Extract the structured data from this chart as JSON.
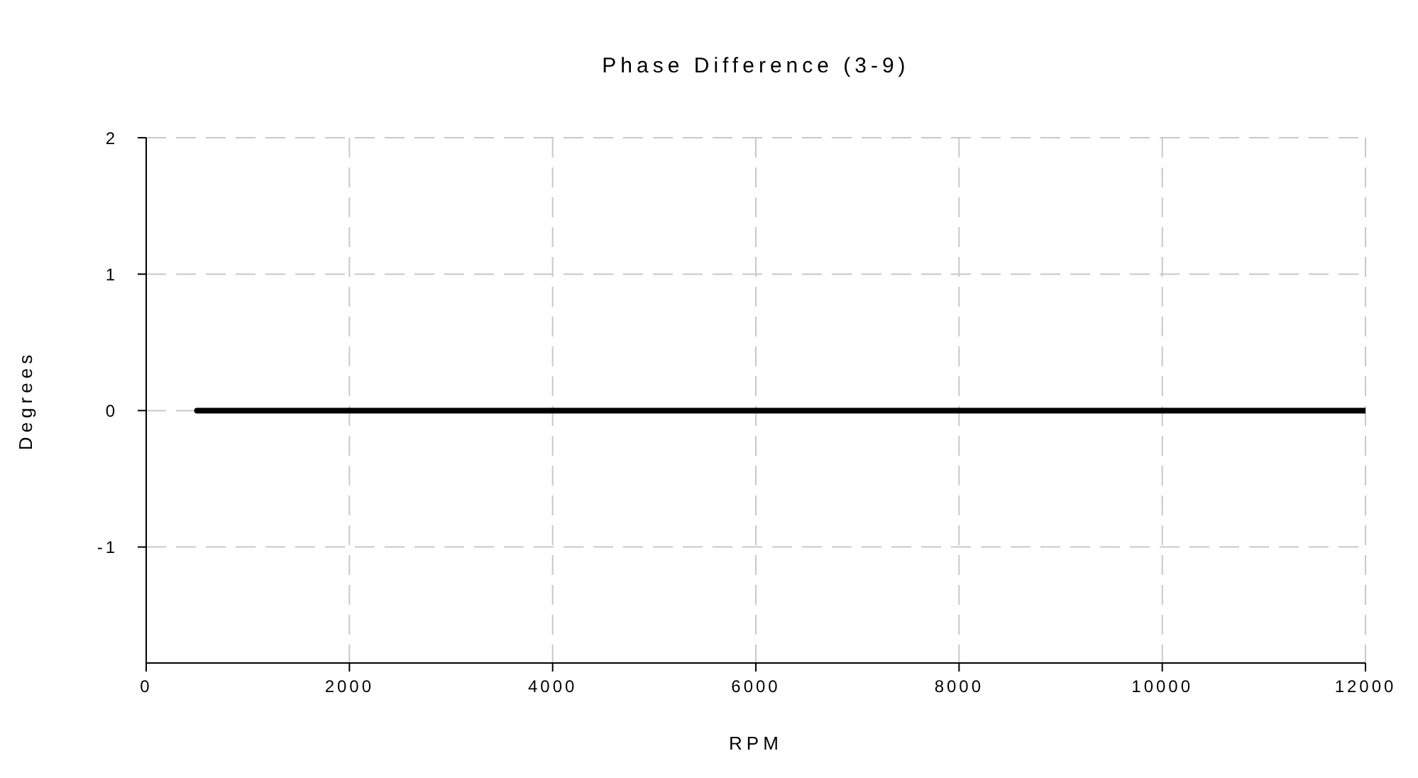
{
  "chart_data": {
    "type": "line",
    "title": "Phase Difference (3-9)",
    "xlabel": "RPM",
    "ylabel": "Degrees",
    "x": [
      500,
      12000
    ],
    "series": [
      {
        "color": "#000000",
        "values": [
          0,
          0
        ]
      }
    ],
    "xlim": [
      0,
      12000
    ],
    "xticks": [
      0,
      2000,
      4000,
      6000,
      8000,
      10000,
      12000
    ],
    "ylim": [
      -1.85,
      2
    ],
    "yticks": [
      -1,
      0,
      1,
      2
    ],
    "grid": true,
    "marker": "none",
    "line_style": "solid"
  }
}
